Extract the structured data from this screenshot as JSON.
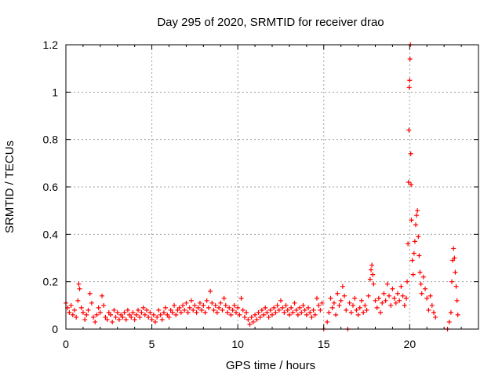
{
  "chart_data": {
    "type": "scatter",
    "title": "Day 295 of 2020, SRMTID for receiver drao",
    "xlabel": "GPS time / hours",
    "ylabel": "SRMTID / TECUs",
    "xlim": [
      0,
      24
    ],
    "ylim": [
      0,
      1.2
    ],
    "x_ticks": [
      0,
      5,
      10,
      15,
      20
    ],
    "x_tick_labels": [
      "0",
      "5",
      "10",
      "15",
      "20"
    ],
    "y_ticks": [
      0,
      0.2,
      0.4,
      0.6,
      0.8,
      1.0,
      1.2
    ],
    "y_tick_labels": [
      "0",
      "0.2",
      "0.4",
      "0.6",
      "0.8",
      "1",
      "1.2"
    ],
    "grid": true,
    "marker": "+",
    "color": "#ff0000",
    "series": [
      {
        "name": "SRMTID",
        "points": [
          [
            0.0,
            0.11
          ],
          [
            0.1,
            0.09
          ],
          [
            0.2,
            0.07
          ],
          [
            0.3,
            0.1
          ],
          [
            0.4,
            0.06
          ],
          [
            0.5,
            0.08
          ],
          [
            0.6,
            0.05
          ],
          [
            0.7,
            0.12
          ],
          [
            0.75,
            0.19
          ],
          [
            0.8,
            0.17
          ],
          [
            0.9,
            0.09
          ],
          [
            1.0,
            0.07
          ],
          [
            1.1,
            0.04
          ],
          [
            1.2,
            0.06
          ],
          [
            1.3,
            0.08
          ],
          [
            1.4,
            0.15
          ],
          [
            1.5,
            0.11
          ],
          [
            1.6,
            0.05
          ],
          [
            1.7,
            0.03
          ],
          [
            1.8,
            0.06
          ],
          [
            1.9,
            0.09
          ],
          [
            2.0,
            0.07
          ],
          [
            2.1,
            0.14
          ],
          [
            2.2,
            0.1
          ],
          [
            2.3,
            0.05
          ],
          [
            2.4,
            0.04
          ],
          [
            2.5,
            0.07
          ],
          [
            2.6,
            0.06
          ],
          [
            2.7,
            0.03
          ],
          [
            2.8,
            0.08
          ],
          [
            2.9,
            0.05
          ],
          [
            3.0,
            0.07
          ],
          [
            3.1,
            0.04
          ],
          [
            3.2,
            0.06
          ],
          [
            3.3,
            0.05
          ],
          [
            3.4,
            0.07
          ],
          [
            3.5,
            0.04
          ],
          [
            3.6,
            0.08
          ],
          [
            3.7,
            0.06
          ],
          [
            3.8,
            0.05
          ],
          [
            3.9,
            0.07
          ],
          [
            4.0,
            0.04
          ],
          [
            4.1,
            0.06
          ],
          [
            4.2,
            0.08
          ],
          [
            4.3,
            0.05
          ],
          [
            4.4,
            0.07
          ],
          [
            4.5,
            0.09
          ],
          [
            4.6,
            0.06
          ],
          [
            4.7,
            0.08
          ],
          [
            4.8,
            0.05
          ],
          [
            4.9,
            0.07
          ],
          [
            5.0,
            0.04
          ],
          [
            5.1,
            0.06
          ],
          [
            5.2,
            0.03
          ],
          [
            5.3,
            0.05
          ],
          [
            5.4,
            0.08
          ],
          [
            5.5,
            0.06
          ],
          [
            5.6,
            0.04
          ],
          [
            5.7,
            0.07
          ],
          [
            5.8,
            0.09
          ],
          [
            5.9,
            0.06
          ],
          [
            6.0,
            0.05
          ],
          [
            6.1,
            0.08
          ],
          [
            6.2,
            0.07
          ],
          [
            6.3,
            0.1
          ],
          [
            6.4,
            0.06
          ],
          [
            6.5,
            0.08
          ],
          [
            6.6,
            0.09
          ],
          [
            6.7,
            0.07
          ],
          [
            6.8,
            0.1
          ],
          [
            6.9,
            0.08
          ],
          [
            7.0,
            0.11
          ],
          [
            7.1,
            0.07
          ],
          [
            7.2,
            0.09
          ],
          [
            7.3,
            0.12
          ],
          [
            7.4,
            0.08
          ],
          [
            7.5,
            0.1
          ],
          [
            7.6,
            0.07
          ],
          [
            7.7,
            0.09
          ],
          [
            7.8,
            0.11
          ],
          [
            7.9,
            0.08
          ],
          [
            8.0,
            0.1
          ],
          [
            8.1,
            0.07
          ],
          [
            8.2,
            0.12
          ],
          [
            8.3,
            0.09
          ],
          [
            8.4,
            0.16
          ],
          [
            8.5,
            0.11
          ],
          [
            8.6,
            0.08
          ],
          [
            8.7,
            0.1
          ],
          [
            8.8,
            0.07
          ],
          [
            8.9,
            0.09
          ],
          [
            9.0,
            0.11
          ],
          [
            9.1,
            0.08
          ],
          [
            9.2,
            0.13
          ],
          [
            9.3,
            0.1
          ],
          [
            9.4,
            0.07
          ],
          [
            9.5,
            0.09
          ],
          [
            9.6,
            0.06
          ],
          [
            9.7,
            0.08
          ],
          [
            9.8,
            0.1
          ],
          [
            9.9,
            0.07
          ],
          [
            10.0,
            0.09
          ],
          [
            10.1,
            0.06
          ],
          [
            10.2,
            0.13
          ],
          [
            10.3,
            0.08
          ],
          [
            10.4,
            0.05
          ],
          [
            10.5,
            0.07
          ],
          [
            10.6,
            0.04
          ],
          [
            10.7,
            0.02
          ],
          [
            10.8,
            0.05
          ],
          [
            10.9,
            0.03
          ],
          [
            11.0,
            0.06
          ],
          [
            11.1,
            0.04
          ],
          [
            11.2,
            0.07
          ],
          [
            11.3,
            0.05
          ],
          [
            11.4,
            0.08
          ],
          [
            11.5,
            0.06
          ],
          [
            11.6,
            0.09
          ],
          [
            11.7,
            0.07
          ],
          [
            11.8,
            0.05
          ],
          [
            11.9,
            0.08
          ],
          [
            12.0,
            0.06
          ],
          [
            12.1,
            0.09
          ],
          [
            12.2,
            0.07
          ],
          [
            12.3,
            0.1
          ],
          [
            12.4,
            0.08
          ],
          [
            12.5,
            0.12
          ],
          [
            12.6,
            0.09
          ],
          [
            12.7,
            0.07
          ],
          [
            12.8,
            0.1
          ],
          [
            12.9,
            0.08
          ],
          [
            13.0,
            0.06
          ],
          [
            13.1,
            0.09
          ],
          [
            13.2,
            0.07
          ],
          [
            13.3,
            0.11
          ],
          [
            13.4,
            0.08
          ],
          [
            13.5,
            0.06
          ],
          [
            13.6,
            0.09
          ],
          [
            13.7,
            0.07
          ],
          [
            13.8,
            0.1
          ],
          [
            13.9,
            0.08
          ],
          [
            14.0,
            0.06
          ],
          [
            14.1,
            0.09
          ],
          [
            14.2,
            0.07
          ],
          [
            14.3,
            0.05
          ],
          [
            14.4,
            0.08
          ],
          [
            14.5,
            0.06
          ],
          [
            14.6,
            0.13
          ],
          [
            14.7,
            0.1
          ],
          [
            14.8,
            0.08
          ],
          [
            14.9,
            0.11
          ],
          [
            15.0,
            0.0
          ],
          [
            15.2,
            0.03
          ],
          [
            15.3,
            0.07
          ],
          [
            15.4,
            0.13
          ],
          [
            15.5,
            0.09
          ],
          [
            15.6,
            0.11
          ],
          [
            15.7,
            0.06
          ],
          [
            15.8,
            0.15
          ],
          [
            15.9,
            0.1
          ],
          [
            16.0,
            0.12
          ],
          [
            16.1,
            0.18
          ],
          [
            16.2,
            0.14
          ],
          [
            16.3,
            0.08
          ],
          [
            16.4,
            0.0
          ],
          [
            16.5,
            0.11
          ],
          [
            16.6,
            0.07
          ],
          [
            16.7,
            0.1
          ],
          [
            16.8,
            0.13
          ],
          [
            16.9,
            0.08
          ],
          [
            17.0,
            0.06
          ],
          [
            17.1,
            0.09
          ],
          [
            17.2,
            0.12
          ],
          [
            17.3,
            0.07
          ],
          [
            17.4,
            0.1
          ],
          [
            17.5,
            0.08
          ],
          [
            17.6,
            0.14
          ],
          [
            17.7,
            0.21
          ],
          [
            17.75,
            0.25
          ],
          [
            17.8,
            0.27
          ],
          [
            17.85,
            0.23
          ],
          [
            17.9,
            0.19
          ],
          [
            18.0,
            0.12
          ],
          [
            18.1,
            0.09
          ],
          [
            18.2,
            0.13
          ],
          [
            18.3,
            0.07
          ],
          [
            18.4,
            0.11
          ],
          [
            18.5,
            0.15
          ],
          [
            18.6,
            0.12
          ],
          [
            18.7,
            0.19
          ],
          [
            18.8,
            0.14
          ],
          [
            18.9,
            0.1
          ],
          [
            19.0,
            0.17
          ],
          [
            19.1,
            0.13
          ],
          [
            19.2,
            0.11
          ],
          [
            19.3,
            0.15
          ],
          [
            19.4,
            0.12
          ],
          [
            19.5,
            0.18
          ],
          [
            19.6,
            0.14
          ],
          [
            19.7,
            0.1
          ],
          [
            19.8,
            0.13
          ],
          [
            19.85,
            0.2
          ],
          [
            19.9,
            0.36
          ],
          [
            19.93,
            0.62
          ],
          [
            19.95,
            0.84
          ],
          [
            19.97,
            1.02
          ],
          [
            20.0,
            1.05
          ],
          [
            20.02,
            1.14
          ],
          [
            20.04,
            1.2
          ],
          [
            20.06,
            0.74
          ],
          [
            20.08,
            0.61
          ],
          [
            20.1,
            0.46
          ],
          [
            20.15,
            0.29
          ],
          [
            20.2,
            0.23
          ],
          [
            20.25,
            0.32
          ],
          [
            20.3,
            0.37
          ],
          [
            20.35,
            0.44
          ],
          [
            20.4,
            0.48
          ],
          [
            20.45,
            0.5
          ],
          [
            20.5,
            0.39
          ],
          [
            20.55,
            0.31
          ],
          [
            20.6,
            0.24
          ],
          [
            20.65,
            0.19
          ],
          [
            20.7,
            0.15
          ],
          [
            20.8,
            0.22
          ],
          [
            20.9,
            0.17
          ],
          [
            21.0,
            0.13
          ],
          [
            21.1,
            0.08
          ],
          [
            21.2,
            0.14
          ],
          [
            21.3,
            0.1
          ],
          [
            21.4,
            0.07
          ],
          [
            21.5,
            0.05
          ],
          [
            22.2,
            0.0
          ],
          [
            22.3,
            0.03
          ],
          [
            22.4,
            0.07
          ],
          [
            22.45,
            0.2
          ],
          [
            22.5,
            0.29
          ],
          [
            22.55,
            0.34
          ],
          [
            22.6,
            0.3
          ],
          [
            22.65,
            0.24
          ],
          [
            22.7,
            0.18
          ],
          [
            22.75,
            0.12
          ],
          [
            22.8,
            0.06
          ]
        ]
      }
    ]
  }
}
